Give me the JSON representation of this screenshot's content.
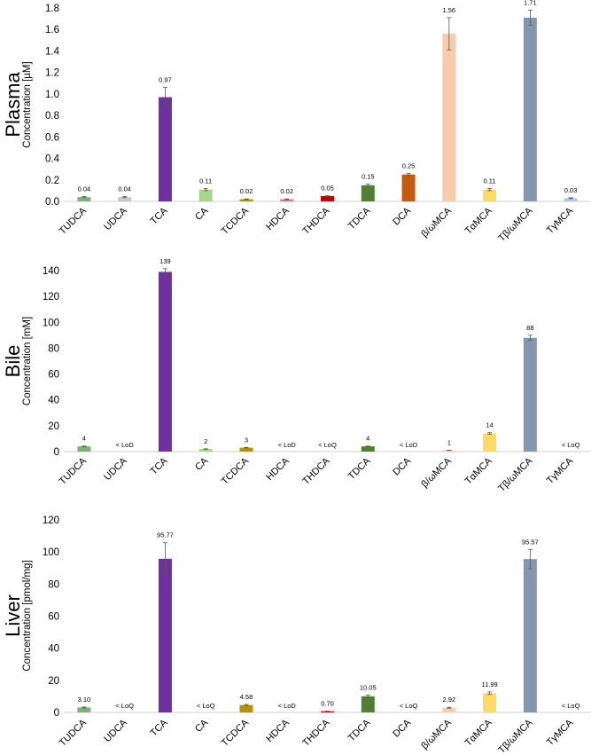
{
  "chart_data": [
    {
      "type": "bar",
      "panel_label": "Plasma",
      "ylabel": "Concentration [µM]",
      "ylim": [
        0,
        1.8
      ],
      "yticks": [
        "0.0",
        "0.2",
        "0.4",
        "0.6",
        "0.8",
        "1.0",
        "1.2",
        "1.4",
        "1.6",
        "1.8"
      ],
      "ytick_values": [
        0,
        0.2,
        0.4,
        0.6,
        0.8,
        1.0,
        1.2,
        1.4,
        1.6,
        1.8
      ],
      "categories": [
        "TUDCA",
        "UDCA",
        "TCA",
        "CA",
        "TCDCA",
        "HDCA",
        "THDCA",
        "TDCA",
        "DCA",
        "β/ωMCA",
        "TαMCA",
        "Tβ/ωMCA",
        "TγMCA"
      ],
      "values": [
        0.04,
        0.04,
        0.97,
        0.11,
        0.02,
        0.02,
        0.05,
        0.15,
        0.25,
        1.56,
        0.11,
        1.71,
        0.03
      ],
      "errors": [
        0.005,
        0.005,
        0.09,
        0.01,
        0.003,
        0.003,
        0.005,
        0.01,
        0.01,
        0.15,
        0.01,
        0.07,
        0.004
      ],
      "labels": [
        "0.04",
        "0.04",
        "0.97",
        "0.11",
        "0.02",
        "0.02",
        "0.05",
        "0.15",
        "0.25",
        "1.56",
        "0.11",
        "1.71",
        "0.03"
      ]
    },
    {
      "type": "bar",
      "panel_label": "Bile",
      "ylabel": "Concentration [mM]",
      "ylim": [
        0,
        140
      ],
      "yticks": [
        "0",
        "20",
        "40",
        "60",
        "80",
        "100",
        "120",
        "140"
      ],
      "ytick_values": [
        0,
        20,
        40,
        60,
        80,
        100,
        120,
        140
      ],
      "categories": [
        "TUDCA",
        "UDCA",
        "TCA",
        "CA",
        "TCDCA",
        "HDCA",
        "THDCA",
        "TDCA",
        "DCA",
        "β/ωMCA",
        "TαMCA",
        "Tβ/ωMCA",
        "TγMCA"
      ],
      "values": [
        4,
        0,
        139,
        2,
        3,
        0,
        0,
        4,
        0,
        1,
        14,
        88,
        0
      ],
      "errors": [
        0.3,
        0,
        2.5,
        0.2,
        0.2,
        0,
        0,
        0.3,
        0,
        0.1,
        0.6,
        2,
        0
      ],
      "labels": [
        "4",
        "< LoD",
        "139",
        "2",
        "3",
        "< LoD",
        "< LoQ",
        "4",
        "< LoD",
        "1",
        "14",
        "88",
        "< LoQ"
      ]
    },
    {
      "type": "bar",
      "panel_label": "Liver",
      "ylabel": "Concentration [pmol/mg]",
      "ylim": [
        0,
        120
      ],
      "yticks": [
        "0",
        "20",
        "40",
        "60",
        "80",
        "100",
        "120"
      ],
      "ytick_values": [
        0,
        20,
        40,
        60,
        80,
        100,
        120
      ],
      "categories": [
        "TUDCA",
        "UDCA",
        "TCA",
        "CA",
        "TCDCA",
        "HDCA",
        "THDCA",
        "TDCA",
        "DCA",
        "β/ωMCA",
        "TαMCA",
        "Tβ/ωMCA",
        "TγMCA"
      ],
      "values": [
        3.1,
        0,
        95.77,
        0,
        4.58,
        0,
        0.7,
        10.05,
        0,
        2.92,
        11.99,
        95.57,
        0
      ],
      "errors": [
        0.3,
        0,
        10,
        0,
        0.4,
        0,
        0.1,
        0.8,
        0,
        0.3,
        0.8,
        6,
        0
      ],
      "labels": [
        "3.10",
        "< LoQ",
        "95.77",
        "< LoQ",
        "4.58",
        "< LoD",
        "0.70",
        "10.05",
        "< LoQ",
        "2.92",
        "11.99",
        "95.57",
        "< LoQ"
      ]
    }
  ],
  "bar_colors": [
    "#7fb07a",
    "#c8c8c8",
    "#7030a0",
    "#a8d48c",
    "#b8900a",
    "#e07a7a",
    "#c00000",
    "#507e32",
    "#c55a11",
    "#f8cbad",
    "#ffd966",
    "#8497b0",
    "#b4c7e7"
  ]
}
